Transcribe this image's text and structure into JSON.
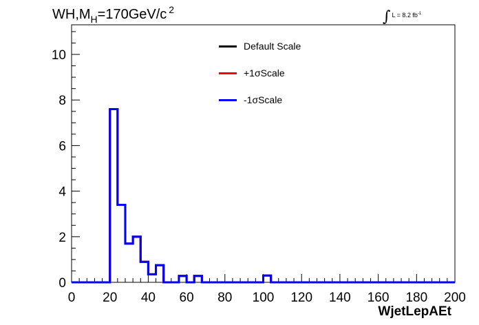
{
  "chart_data": {
    "type": "line",
    "title": {
      "main": "WH,M",
      "subscript": "H",
      "value": "=170GeV/c",
      "superscript": "2"
    },
    "lumi": {
      "symbol": "∫",
      "text": "L = 8.2 fb",
      "superscript": "-1"
    },
    "xlabel": "WjetLepAEt",
    "ylabel": "",
    "xlim": [
      0,
      200
    ],
    "ylim": [
      0,
      11.3
    ],
    "x_ticks": [
      "0",
      "20",
      "40",
      "60",
      "80",
      "100",
      "120",
      "140",
      "160",
      "180",
      "200"
    ],
    "y_ticks": [
      "0",
      "2",
      "4",
      "6",
      "8",
      "10"
    ],
    "bin_width": 4,
    "bin_edges_start": 0,
    "series": [
      {
        "name": "Default Scale",
        "color": "#000000",
        "values": [
          0,
          0,
          0,
          0,
          0,
          7.6,
          3.4,
          1.7,
          2.0,
          0.9,
          0.35,
          0.75,
          0,
          0,
          0.28,
          0,
          0.28,
          0,
          0,
          0,
          0,
          0,
          0,
          0,
          0,
          0.3,
          0,
          0,
          0,
          0,
          0,
          0,
          0,
          0,
          0,
          0,
          0,
          0,
          0,
          0,
          0,
          0,
          0,
          0,
          0,
          0,
          0,
          0,
          0,
          0
        ]
      },
      {
        "name": "+1σScale",
        "color": "#ff0000",
        "values": [
          0,
          0,
          0,
          0,
          0,
          7.6,
          3.4,
          1.7,
          2.0,
          0.9,
          0.35,
          0.75,
          0,
          0,
          0.28,
          0,
          0.28,
          0,
          0,
          0,
          0,
          0,
          0,
          0,
          0,
          0.3,
          0,
          0,
          0,
          0,
          0,
          0,
          0,
          0,
          0,
          0,
          0,
          0,
          0,
          0,
          0,
          0,
          0,
          0,
          0,
          0,
          0,
          0,
          0,
          0
        ]
      },
      {
        "name": "-1σScale",
        "color": "#0000ff",
        "values": [
          0,
          0,
          0,
          0,
          0,
          7.6,
          3.4,
          1.7,
          2.0,
          0.9,
          0.35,
          0.75,
          0,
          0,
          0.28,
          0,
          0.28,
          0,
          0,
          0,
          0,
          0,
          0,
          0,
          0,
          0.3,
          0,
          0,
          0,
          0,
          0,
          0,
          0,
          0,
          0,
          0,
          0,
          0,
          0,
          0,
          0,
          0,
          0,
          0,
          0,
          0,
          0,
          0,
          0,
          0
        ]
      }
    ],
    "legend": {
      "position": "top-center",
      "entries": [
        "Default Scale",
        "+1σScale",
        "-1σScale"
      ]
    },
    "grid": false
  }
}
